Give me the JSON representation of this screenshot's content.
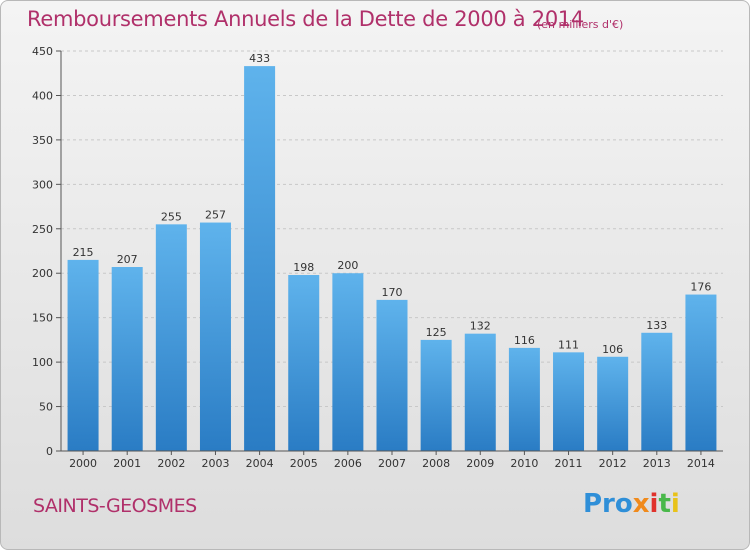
{
  "chart_data": {
    "type": "bar",
    "title": "Remboursements Annuels de la Dette de 2000 à 2014",
    "subtitle": "(en milliers d'€)",
    "categories": [
      "2000",
      "2001",
      "2002",
      "2003",
      "2004",
      "2005",
      "2006",
      "2007",
      "2008",
      "2009",
      "2010",
      "2011",
      "2012",
      "2013",
      "2014"
    ],
    "values": [
      215,
      207,
      255,
      257,
      433,
      198,
      200,
      170,
      125,
      132,
      116,
      111,
      106,
      133,
      176
    ],
    "ylim": [
      0,
      450
    ],
    "yticks": [
      0,
      50,
      100,
      150,
      200,
      250,
      300,
      350,
      400,
      450
    ],
    "grid": true,
    "bar_color_top": "#5fb3ec",
    "bar_color_bottom": "#2a7cc4"
  },
  "location": "SAINTS-GEOSMES",
  "logo": [
    "Pro",
    "x",
    "i",
    "t",
    "i"
  ]
}
